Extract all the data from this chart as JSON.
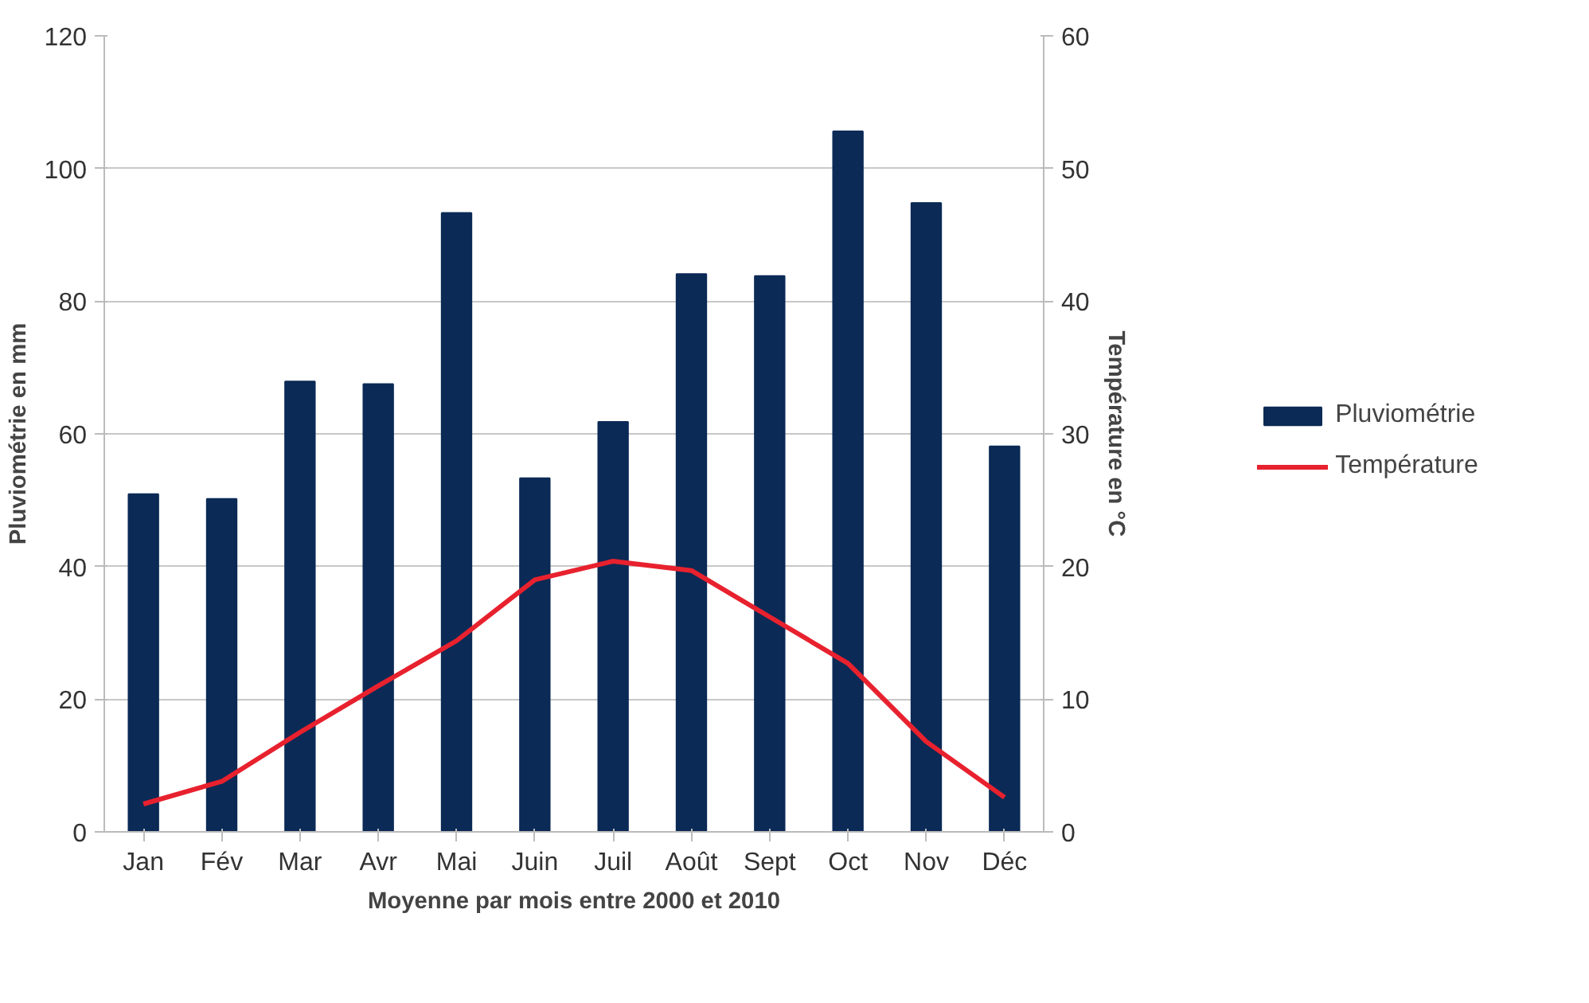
{
  "chart_data": {
    "type": "bar",
    "xlabel": "Moyenne par mois entre 2000 et 2010",
    "ylabel": "Pluviométrie en mm",
    "y2label": "Température en °C",
    "categories": [
      "Jan",
      "Fév",
      "Mar",
      "Avr",
      "Mai",
      "Juin",
      "Juil",
      "Août",
      "Sept",
      "Oct",
      "Nov",
      "Déc"
    ],
    "series": [
      {
        "name": "Pluviométrie",
        "type": "bar",
        "color": "#0b2a56",
        "values": [
          50.9,
          50.2,
          67.9,
          67.5,
          93.3,
          53.3,
          61.8,
          84.1,
          83.8,
          105.6,
          94.8,
          58.1
        ]
      },
      {
        "name": "Température",
        "type": "line",
        "axis": "y2",
        "color": "#e8212e",
        "values": [
          2.1,
          3.8,
          7.5,
          11.0,
          14.4,
          19.0,
          20.4,
          19.7,
          16.2,
          12.7,
          6.8,
          2.6
        ]
      }
    ],
    "ylim": [
      0,
      120
    ],
    "yticks": [
      0,
      20,
      40,
      60,
      80,
      100,
      120
    ],
    "y2lim": [
      0,
      60
    ],
    "y2ticks": [
      0,
      10,
      20,
      30,
      40,
      50,
      60
    ],
    "grid": "y",
    "legend": "right"
  }
}
